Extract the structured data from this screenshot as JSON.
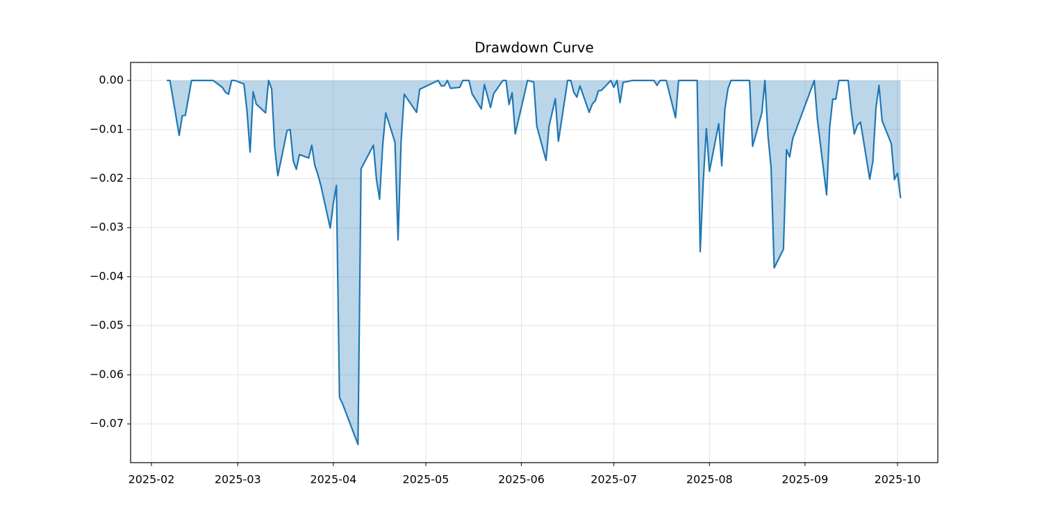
{
  "chart_data": {
    "type": "area",
    "title": "Drawdown Curve",
    "color": "#1f77b4",
    "fill_opacity": 0.3,
    "grid": true,
    "x": [
      20125,
      20126,
      20129,
      20130,
      20131,
      20133,
      20140,
      20143,
      20144,
      20145,
      20146,
      20147,
      20150,
      20151,
      20152,
      20153,
      20154,
      20157,
      20158,
      20159,
      20160,
      20161,
      20164,
      20165,
      20166,
      20167,
      20168,
      20171,
      20172,
      20173,
      20174,
      20175,
      20178,
      20179,
      20180,
      20181,
      20182,
      20187,
      20188,
      20192,
      20193,
      20194,
      20195,
      20196,
      20199,
      20200,
      20201,
      20202,
      20206,
      20207,
      20213,
      20214,
      20215,
      20216,
      20217,
      20220,
      20221,
      20223,
      20224,
      20227,
      20228,
      20230,
      20231,
      20234,
      20235,
      20236,
      20237,
      20238,
      20242,
      20244,
      20245,
      20248,
      20249,
      20250,
      20251,
      20252,
      20255,
      20256,
      20257,
      20258,
      20259,
      20262,
      20263,
      20264,
      20265,
      20266,
      20269,
      20270,
      20271,
      20272,
      20273,
      20276,
      20283,
      20284,
      20285,
      20287,
      20290,
      20291,
      20297,
      20298,
      20299,
      20300,
      20301,
      20304,
      20305,
      20306,
      20307,
      20308,
      20314,
      20315,
      20318,
      20319,
      20320,
      20321,
      20322,
      20325,
      20326,
      20327,
      20328,
      20329,
      20335,
      20336,
      20339,
      20340,
      20341,
      20342,
      20343,
      20346,
      20347,
      20348,
      20349,
      20350,
      20353,
      20354,
      20355,
      20356,
      20357,
      20360,
      20361,
      20362,
      20363
    ],
    "values": [
      0,
      0,
      -0.0112,
      -0.0072,
      -0.0071,
      0,
      0,
      -0.0014,
      -0.0024,
      -0.0028,
      0,
      0,
      -0.0007,
      -0.0062,
      -0.0146,
      -0.0023,
      -0.0048,
      -0.0066,
      0,
      -0.0017,
      -0.0137,
      -0.0194,
      -0.0102,
      -0.01,
      -0.0164,
      -0.0181,
      -0.0151,
      -0.0158,
      -0.0132,
      -0.0173,
      -0.0192,
      -0.0215,
      -0.0301,
      -0.025,
      -0.0214,
      -0.0646,
      -0.0659,
      -0.0742,
      -0.018,
      -0.0132,
      -0.0202,
      -0.0242,
      -0.0133,
      -0.0066,
      -0.0126,
      -0.0325,
      -0.0122,
      -0.0028,
      -0.0065,
      -0.0018,
      0,
      -0.0011,
      -0.0011,
      0,
      -0.0016,
      -0.0014,
      0,
      0,
      -0.0027,
      -0.0058,
      -0.0008,
      -0.0055,
      -0.0027,
      0,
      0,
      -0.0049,
      -0.0025,
      -0.0109,
      0,
      -0.0003,
      -0.0093,
      -0.0163,
      -0.0092,
      -0.0065,
      -0.0037,
      -0.0124,
      0,
      0,
      -0.0024,
      -0.0034,
      -0.0011,
      -0.0065,
      -0.0048,
      -0.0041,
      -0.0021,
      -0.002,
      0,
      -0.0014,
      0,
      -0.0045,
      -0.0004,
      0,
      0,
      -0.001,
      0,
      0,
      -0.0076,
      0,
      0,
      -0.0349,
      -0.0204,
      -0.0098,
      -0.0185,
      -0.0088,
      -0.0174,
      -0.0059,
      -0.0017,
      0,
      0,
      -0.0134,
      -0.0066,
      0,
      -0.0113,
      -0.0178,
      -0.0382,
      -0.0344,
      -0.0141,
      -0.0156,
      -0.0119,
      -0.0102,
      0,
      -0.0079,
      -0.0233,
      -0.0095,
      -0.0038,
      -0.0038,
      0,
      0,
      -0.0062,
      -0.0109,
      -0.0091,
      -0.0085,
      -0.0201,
      -0.0165,
      -0.0057,
      -0.001,
      -0.0082,
      -0.0129,
      -0.0202,
      -0.0189,
      -0.024
    ],
    "xlim": [
      20113.24,
      20375.07
    ],
    "xticks": [
      {
        "value": 20120,
        "label": "2025-02"
      },
      {
        "value": 20148,
        "label": "2025-03"
      },
      {
        "value": 20179,
        "label": "2025-04"
      },
      {
        "value": 20209,
        "label": "2025-05"
      },
      {
        "value": 20240,
        "label": "2025-06"
      },
      {
        "value": 20270,
        "label": "2025-07"
      },
      {
        "value": 20301,
        "label": "2025-08"
      },
      {
        "value": 20332,
        "label": "2025-09"
      },
      {
        "value": 20362,
        "label": "2025-10"
      }
    ],
    "ylim": [
      -0.0779,
      0.00368
    ],
    "yticks": [
      {
        "value": 0,
        "label": "0.00"
      },
      {
        "value": -0.01,
        "label": "−0.01"
      },
      {
        "value": -0.02,
        "label": "−0.02"
      },
      {
        "value": -0.03,
        "label": "−0.03"
      },
      {
        "value": -0.04,
        "label": "−0.04"
      },
      {
        "value": -0.05,
        "label": "−0.05"
      },
      {
        "value": -0.06,
        "label": "−0.06"
      },
      {
        "value": -0.07,
        "label": "−0.07"
      }
    ]
  }
}
